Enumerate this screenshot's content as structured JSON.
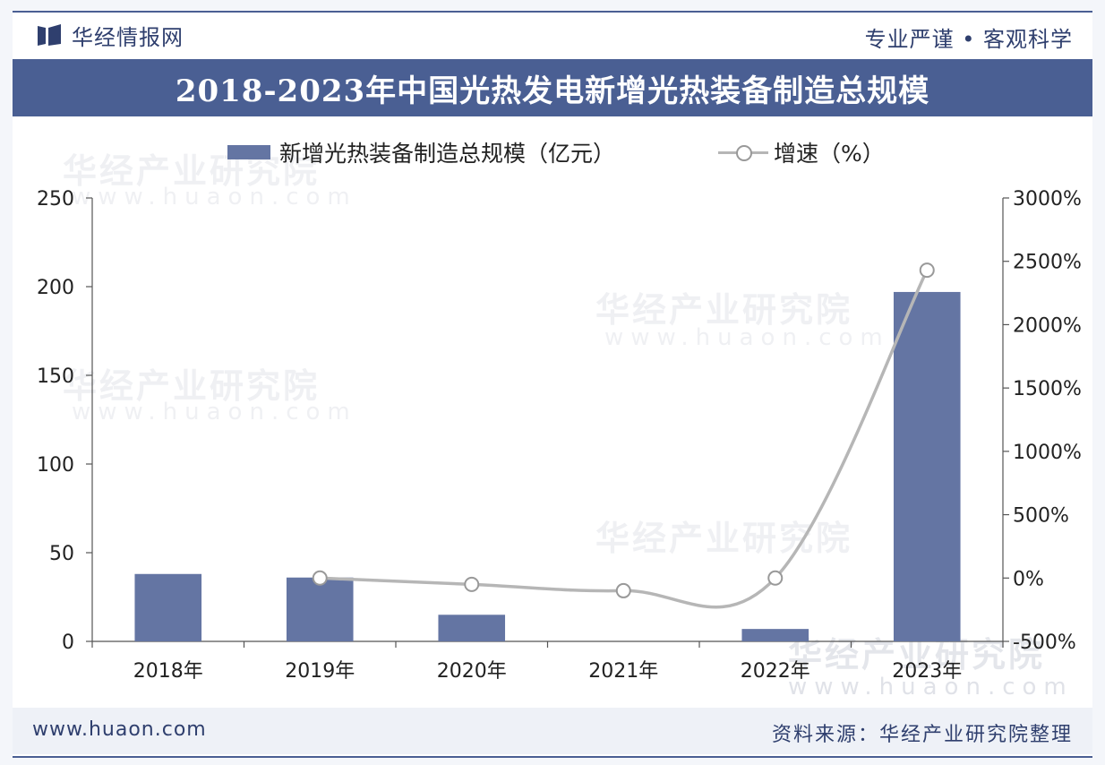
{
  "header": {
    "brand": "华经情报网",
    "slogan": "专业严谨 • 客观科学"
  },
  "title": "2018-2023年中国光热发电新增光热装备制造总规模",
  "legend": {
    "bar_label": "新增光热装备制造总规模（亿元）",
    "line_label": "增速（%）"
  },
  "watermark": {
    "text": "华经产业研究院",
    "url": "www.huaon.com"
  },
  "footer": {
    "website": "www.huaon.com",
    "source": "资料来源：华经产业研究院整理"
  },
  "colors": {
    "bar": "#6475a3",
    "line": "#b6b6b6",
    "marker_stroke": "#999999",
    "title_bg": "#4a5f93"
  },
  "chart_data": {
    "type": "bar",
    "categories": [
      "2018年",
      "2019年",
      "2020年",
      "2021年",
      "2022年",
      "2023年"
    ],
    "series": [
      {
        "name": "新增光热装备制造总规模（亿元）",
        "type": "bar",
        "axis": "left",
        "values": [
          38,
          36,
          15,
          0,
          7,
          197
        ]
      },
      {
        "name": "增速（%）",
        "type": "line",
        "axis": "right",
        "values": [
          null,
          0,
          -50,
          -100,
          0,
          2430
        ]
      }
    ],
    "y_left": {
      "ylim": [
        0,
        250
      ],
      "ticks": [
        0,
        50,
        100,
        150,
        200,
        250
      ],
      "tick_labels": [
        "0",
        "50",
        "100",
        "150",
        "200",
        "250"
      ]
    },
    "y_right": {
      "ylim": [
        -500,
        3000
      ],
      "ticks": [
        -500,
        0,
        500,
        1000,
        1500,
        2000,
        2500,
        3000
      ],
      "tick_labels": [
        "-500%",
        "0%",
        "500%",
        "1000%",
        "1500%",
        "2000%",
        "2500%",
        "3000%"
      ]
    },
    "grid": false,
    "legend_position": "top"
  }
}
